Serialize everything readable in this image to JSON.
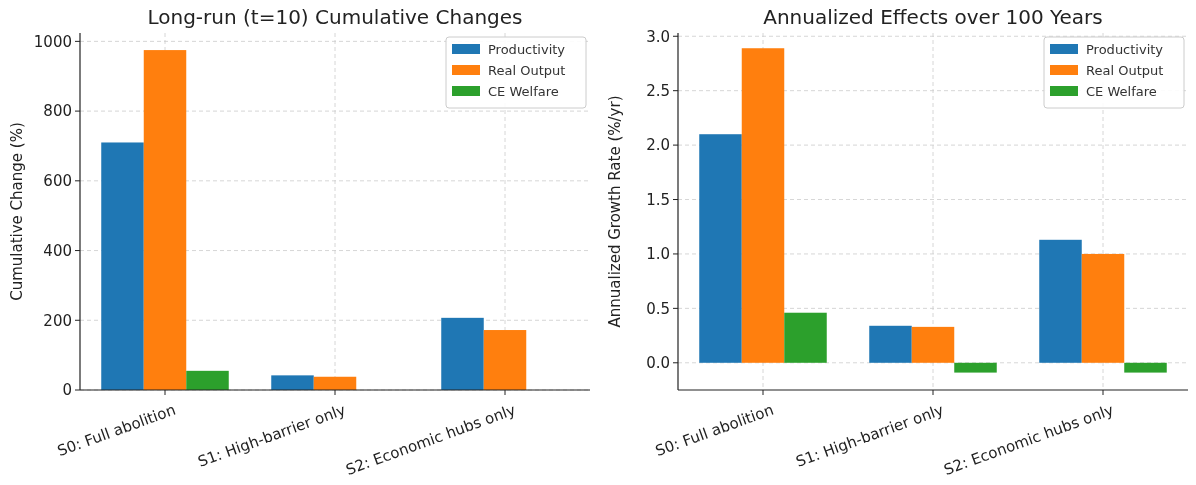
{
  "chart_data": [
    {
      "type": "bar",
      "title": "Long-run (t=10) Cumulative Changes",
      "ylabel": "Cumulative Change (%)",
      "categories": [
        "S0: Full abolition",
        "S1: High-barrier only",
        "S2: Economic hubs only"
      ],
      "series": [
        {
          "name": "Productivity",
          "color": "#1f77b4",
          "values": [
            710,
            42,
            207
          ]
        },
        {
          "name": "Real Output",
          "color": "#ff7f0e",
          "values": [
            975,
            38,
            172
          ]
        },
        {
          "name": "CE Welfare",
          "color": "#2ca02c",
          "values": [
            55,
            null,
            null
          ]
        }
      ],
      "ylim": [
        0,
        1024
      ],
      "yticks": [
        0,
        200,
        400,
        600,
        800,
        1000
      ],
      "grid": true,
      "legend": "top right"
    },
    {
      "type": "bar",
      "title": "Annualized Effects over 100 Years",
      "ylabel": "Annualized Growth Rate (%/yr)",
      "categories": [
        "S0: Full abolition",
        "S1: High-barrier only",
        "S2: Economic hubs only"
      ],
      "series": [
        {
          "name": "Productivity",
          "color": "#1f77b4",
          "values": [
            2.1,
            0.34,
            1.13
          ]
        },
        {
          "name": "Real Output",
          "color": "#ff7f0e",
          "values": [
            2.89,
            0.33,
            1.0
          ]
        },
        {
          "name": "CE Welfare",
          "color": "#2ca02c",
          "values": [
            0.46,
            -0.09,
            -0.09
          ]
        }
      ],
      "ylim": [
        -0.25,
        3.03
      ],
      "yticks": [
        {
          "value": 0,
          "label": "0.0"
        },
        {
          "value": 0.5,
          "label": "0.5"
        },
        {
          "value": 1,
          "label": "1.0"
        },
        {
          "value": 1.5,
          "label": "1.5"
        },
        {
          "value": 2,
          "label": "2.0"
        },
        {
          "value": 2.5,
          "label": "2.5"
        },
        {
          "value": 3,
          "label": "3.0"
        }
      ],
      "grid": true,
      "legend": "top right"
    }
  ]
}
